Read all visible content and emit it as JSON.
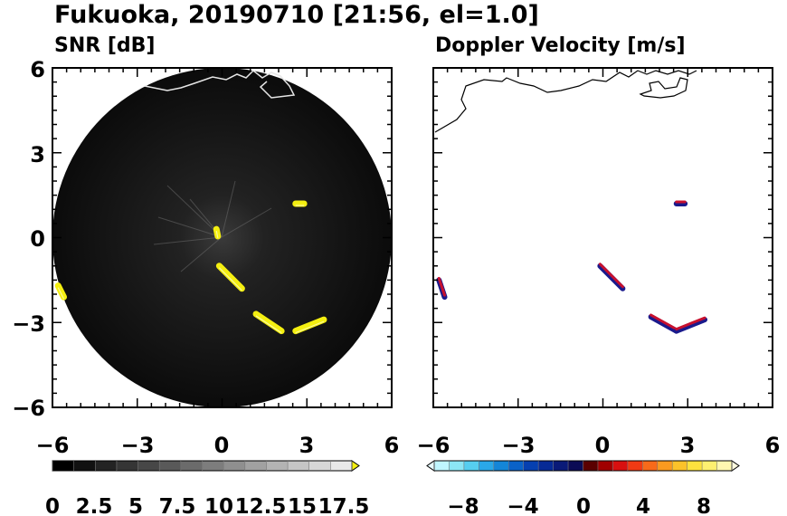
{
  "title": "Fukuoka, 20190710 [21:56, el=1.0]",
  "chart_data": [
    {
      "type": "heatmap",
      "title": "SNR [dB]",
      "xlim": [
        -6,
        6
      ],
      "ylim": [
        -6,
        6
      ],
      "xticks": [
        "−6",
        "−3",
        "0",
        "3",
        "6"
      ],
      "yticks": [
        "6",
        "3",
        "0",
        "−3",
        "−6"
      ],
      "range_radius": 6,
      "background_color": "#0d0d0d",
      "echo_color": "#f4ef10",
      "echoes": [
        {
          "x": -0.1,
          "y": -1.0,
          "x2": 0.7,
          "y2": -1.8
        },
        {
          "x": 1.2,
          "y": -2.7,
          "x2": 2.1,
          "y2": -3.3
        },
        {
          "x": 2.6,
          "y": -3.3,
          "x2": 3.6,
          "y2": -2.9
        },
        {
          "x": 2.6,
          "y": 1.2,
          "x2": 2.9,
          "y2": 1.2
        },
        {
          "x": -0.2,
          "y": 0.3,
          "x2": -0.15,
          "y2": 0.05
        },
        {
          "x": -5.8,
          "y": -1.7,
          "x2": -5.6,
          "y2": -2.1
        }
      ],
      "colorbar": {
        "min": 0,
        "max": 17.5,
        "step": 2.5,
        "labels": [
          "0",
          "2.5",
          "5",
          "7.5",
          "10",
          "12.5",
          "15",
          "17.5"
        ],
        "colors": [
          "#000000",
          "#111111",
          "#232323",
          "#353535",
          "#474747",
          "#595959",
          "#6b6b6b",
          "#7d7d7d",
          "#8f8f8f",
          "#a1a1a1",
          "#b3b3b3",
          "#c5c5c5",
          "#d7d7d7",
          "#e9e9e9"
        ],
        "extend_color": "#f4ef10"
      }
    },
    {
      "type": "heatmap",
      "title": "Doppler Velocity [m/s]",
      "xlim": [
        -6,
        6
      ],
      "ylim": [
        -6,
        6
      ],
      "xticks": [
        "−6",
        "−3",
        "0",
        "3",
        "6"
      ],
      "yticks": [
        "6",
        "3",
        "0",
        "−3",
        "−6"
      ],
      "echoes": [
        {
          "x": -0.1,
          "y": -1.0,
          "x2": 0.7,
          "y2": -1.8
        },
        {
          "x": 1.7,
          "y": -2.8,
          "x2": 2.6,
          "y2": -3.3
        },
        {
          "x": 2.6,
          "y": -3.3,
          "x2": 3.6,
          "y2": -2.9
        },
        {
          "x": 2.6,
          "y": 1.2,
          "x2": 2.9,
          "y2": 1.2
        },
        {
          "x": -5.8,
          "y": -1.5,
          "x2": -5.6,
          "y2": -2.1
        }
      ],
      "echo_colors": [
        "#1a1a8c",
        "#c8102e"
      ],
      "colorbar": {
        "min": -10,
        "max": 10,
        "labels": [
          "−8",
          "−4",
          "0",
          "4",
          "8"
        ],
        "label_values": [
          -8,
          -4,
          0,
          4,
          8
        ],
        "colors": [
          "#bff6ff",
          "#8ce6f5",
          "#56cef0",
          "#2aa8e8",
          "#1486d8",
          "#0a62c8",
          "#0640b0",
          "#062a96",
          "#0a1a78",
          "#0b0b55",
          "#5a0000",
          "#a00000",
          "#d81010",
          "#f03a14",
          "#f86a1a",
          "#fa9a20",
          "#fcc22a",
          "#fde23e",
          "#fef070",
          "#fff7b0"
        ],
        "extend_low": "#e6fbff",
        "extend_high": "#fffbe0"
      }
    }
  ]
}
